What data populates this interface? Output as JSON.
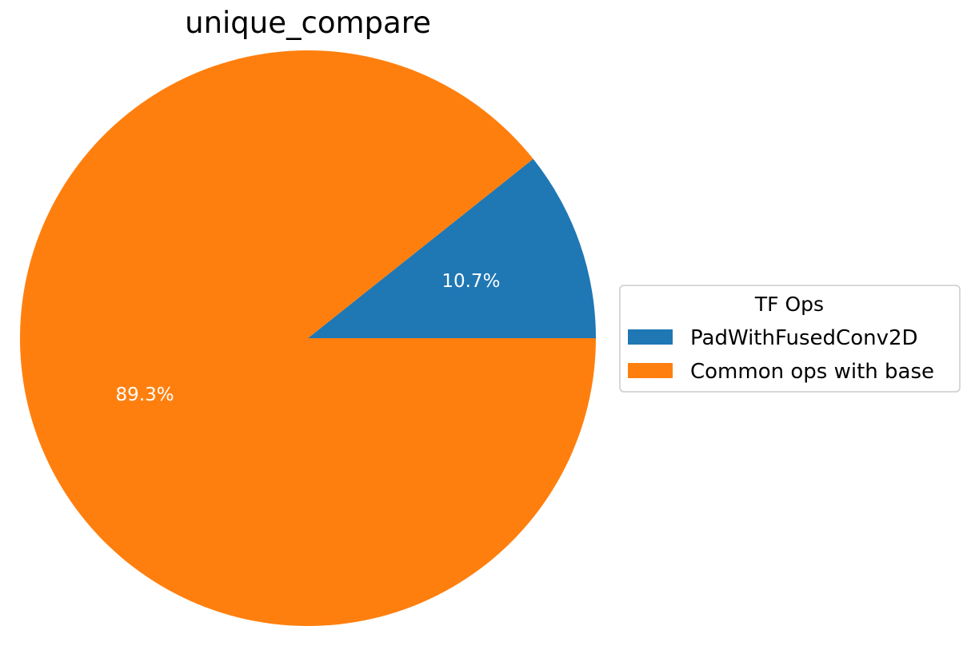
{
  "chart_data": {
    "type": "pie",
    "title": "unique_compare",
    "labels": [
      "PadWithFusedConv2D",
      "Common ops with base"
    ],
    "values": [
      10.7,
      89.3
    ],
    "value_labels": [
      "10.7%",
      "89.3%"
    ],
    "colors": [
      "#1f77b4",
      "#ff7f0e"
    ],
    "start_angle_deg": 0,
    "direction": "counterclockwise",
    "legend": {
      "title": "TF Ops",
      "placement": "center-right"
    }
  }
}
